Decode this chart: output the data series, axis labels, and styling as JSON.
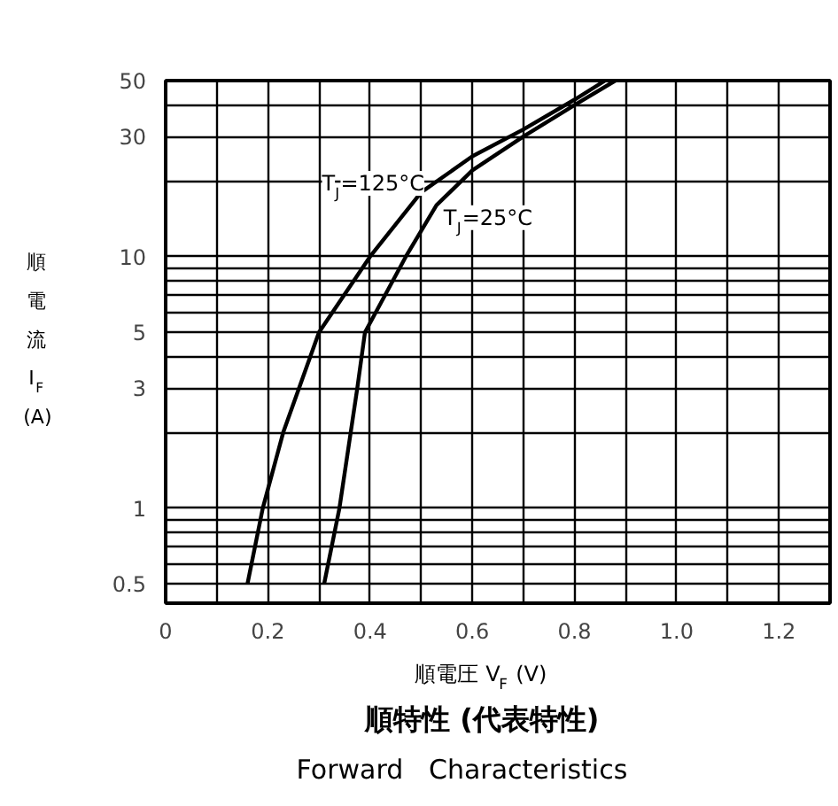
{
  "chart_data": {
    "type": "line",
    "title": "順特性 (代表特性)",
    "subtitle": "Forward Characteristics",
    "xlabel": "順電圧 V$_{F}$ (V)",
    "ylabel": "順電流 I$_{F}$ (A)",
    "log": "y",
    "grid": true,
    "legend": false,
    "marker": "none",
    "line_style": "solid",
    "xlim": [
      0,
      1.3
    ],
    "ylim": [
      0.42,
      50
    ],
    "xticks": [
      0,
      {
        "value": 0.1,
        "label": null
      },
      0.2,
      {
        "value": 0.3,
        "label": null
      },
      0.4,
      {
        "value": 0.5,
        "label": null
      },
      0.6,
      {
        "value": 0.7,
        "label": null
      },
      0.8,
      {
        "value": 0.9,
        "label": null
      },
      {
        "value": 1,
        "label": "1.0"
      },
      {
        "value": 1.1,
        "label": null
      },
      1.2
    ],
    "yticks": [
      0.5,
      {
        "value": 0.6,
        "label": null
      },
      {
        "value": 0.7,
        "label": null
      },
      {
        "value": 0.8,
        "label": null
      },
      {
        "value": 0.9,
        "label": null
      },
      1,
      {
        "value": 2,
        "label": null
      },
      3,
      {
        "value": 4,
        "label": null
      },
      5,
      {
        "value": 6,
        "label": null
      },
      {
        "value": 7,
        "label": null
      },
      {
        "value": 8,
        "label": null
      },
      {
        "value": 9,
        "label": null
      },
      10,
      {
        "value": 20,
        "label": null
      },
      30,
      {
        "value": 40,
        "label": null
      },
      50
    ],
    "series": [
      {
        "name": "T$_{J}$=125°C",
        "color": "#000000",
        "x": [
          0.16,
          0.19,
          0.23,
          0.3,
          0.4,
          0.5,
          0.6,
          0.7,
          0.8,
          0.86
        ],
        "values": [
          0.5,
          1,
          2,
          5,
          10,
          18,
          25,
          32,
          42,
          50
        ]
      },
      {
        "name": "T$_{J}$=25°C",
        "color": "#000000",
        "x": [
          0.31,
          0.34,
          0.375,
          0.39,
          0.47,
          0.53,
          0.6,
          0.7,
          0.8,
          0.88
        ],
        "values": [
          0.5,
          1,
          3,
          5,
          10,
          16,
          22,
          30,
          40,
          50
        ]
      }
    ]
  }
}
